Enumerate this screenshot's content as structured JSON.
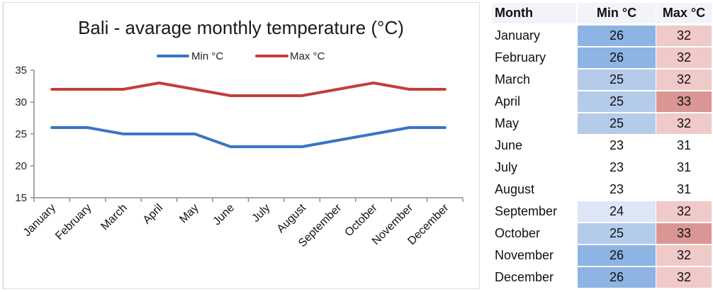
{
  "chart_data": {
    "type": "line",
    "title": "Bali - avarage monthly temperature (°C)",
    "xlabel": "",
    "ylabel": "",
    "categories": [
      "January",
      "February",
      "March",
      "April",
      "May",
      "June",
      "July",
      "August",
      "September",
      "October",
      "November",
      "December"
    ],
    "series": [
      {
        "name": "Min °C",
        "color": "#3a75c4",
        "values": [
          26,
          26,
          25,
          25,
          25,
          23,
          23,
          23,
          24,
          25,
          26,
          26
        ]
      },
      {
        "name": "Max °C",
        "color": "#c0403c",
        "values": [
          32,
          32,
          32,
          33,
          32,
          31,
          31,
          31,
          32,
          33,
          32,
          32
        ]
      }
    ],
    "ylim": [
      15,
      35
    ],
    "yticks": [
      "15",
      "20",
      "25",
      "30",
      "35"
    ],
    "grid": false,
    "legend": "top-center"
  },
  "table": {
    "headers": [
      "Month",
      "Min °C",
      "Max °C"
    ],
    "rows": [
      {
        "month": "January",
        "min": "26",
        "max": "32",
        "min_color": "#8db4e2",
        "max_color": "#f0c9c9"
      },
      {
        "month": "February",
        "min": "26",
        "max": "32",
        "min_color": "#8db4e2",
        "max_color": "#f0c9c9"
      },
      {
        "month": "March",
        "min": "25",
        "max": "32",
        "min_color": "#b4cbea",
        "max_color": "#f0c9c9"
      },
      {
        "month": "April",
        "min": "25",
        "max": "33",
        "min_color": "#b4cbea",
        "max_color": "#da9694"
      },
      {
        "month": "May",
        "min": "25",
        "max": "32",
        "min_color": "#b4cbea",
        "max_color": "#f0c9c9"
      },
      {
        "month": "June",
        "min": "23",
        "max": "31",
        "min_color": "#ffffff",
        "max_color": "#ffffff"
      },
      {
        "month": "July",
        "min": "23",
        "max": "31",
        "min_color": "#ffffff",
        "max_color": "#ffffff"
      },
      {
        "month": "August",
        "min": "23",
        "max": "31",
        "min_color": "#ffffff",
        "max_color": "#ffffff"
      },
      {
        "month": "September",
        "min": "24",
        "max": "32",
        "min_color": "#dce6f4",
        "max_color": "#f0c9c9"
      },
      {
        "month": "October",
        "min": "25",
        "max": "33",
        "min_color": "#b4cbea",
        "max_color": "#da9694"
      },
      {
        "month": "November",
        "min": "26",
        "max": "32",
        "min_color": "#8db4e2",
        "max_color": "#f0c9c9"
      },
      {
        "month": "December",
        "min": "26",
        "max": "32",
        "min_color": "#8db4e2",
        "max_color": "#f0c9c9"
      }
    ]
  }
}
